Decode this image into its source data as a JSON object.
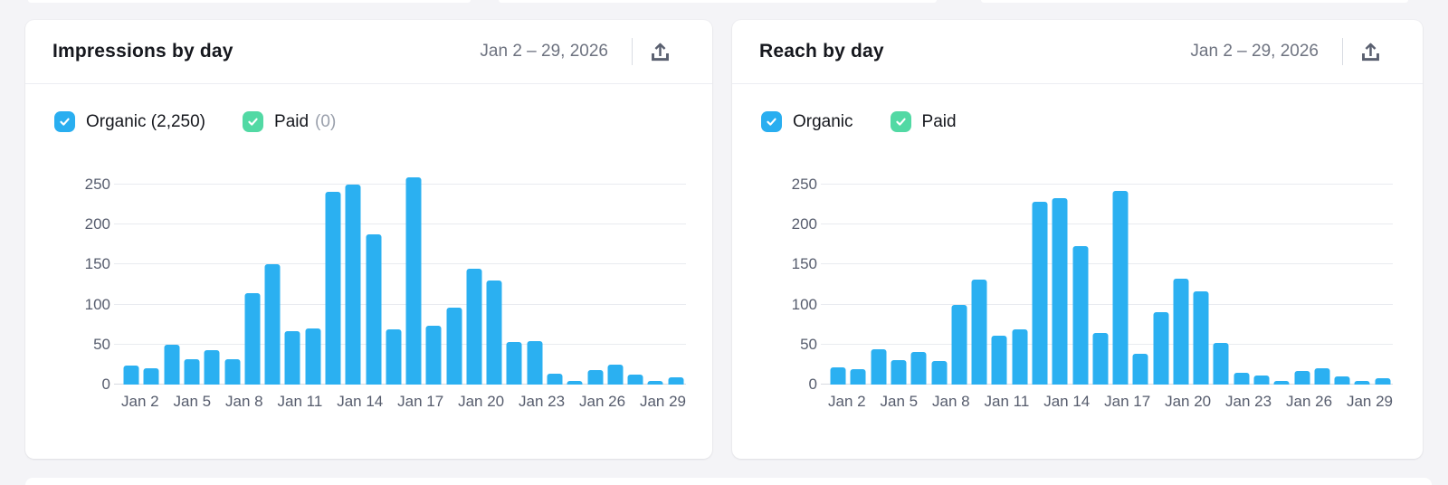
{
  "page": {
    "background_color": "#f4f4f7",
    "card_color": "#ffffff",
    "bar_color": "#2bb0f1",
    "checkbox_blue": "#29aef0",
    "checkbox_green": "#52d9a4",
    "axis_text_color": "#565c6d",
    "muted_text_color": "#9aa0ac"
  },
  "cards": [
    {
      "title": "Impressions by day",
      "date_range": "Jan 2 – 29, 2026",
      "export_icon": "export-upload-icon",
      "legend": [
        {
          "label": "Organic (2,250)",
          "checked": true,
          "color": "#29aef0"
        },
        {
          "label": "Paid",
          "suffix": "(0)",
          "checked": true,
          "color": "#52d9a4"
        }
      ]
    },
    {
      "title": "Reach by day",
      "date_range": "Jan 2 – 29, 2026",
      "export_icon": "export-upload-icon",
      "legend": [
        {
          "label": "Organic",
          "checked": true,
          "color": "#29aef0"
        },
        {
          "label": "Paid",
          "checked": true,
          "color": "#52d9a4"
        }
      ]
    }
  ],
  "chart_data": [
    {
      "type": "bar",
      "title": "Impressions by day",
      "categories": [
        "Jan 2",
        "Jan 3",
        "Jan 4",
        "Jan 5",
        "Jan 6",
        "Jan 7",
        "Jan 8",
        "Jan 9",
        "Jan 10",
        "Jan 11",
        "Jan 12",
        "Jan 13",
        "Jan 14",
        "Jan 15",
        "Jan 16",
        "Jan 17",
        "Jan 18",
        "Jan 19",
        "Jan 20",
        "Jan 21",
        "Jan 22",
        "Jan 23",
        "Jan 24",
        "Jan 25",
        "Jan 26",
        "Jan 27",
        "Jan 28",
        "Jan 29"
      ],
      "series": [
        {
          "name": "Organic",
          "total": 2250,
          "values": [
            24,
            20,
            50,
            32,
            43,
            32,
            114,
            150,
            67,
            70,
            241,
            250,
            188,
            69,
            259,
            74,
            96,
            145,
            130,
            53,
            54,
            14,
            5,
            18,
            25,
            13,
            5,
            9
          ]
        },
        {
          "name": "Paid",
          "total": 0,
          "values": [
            0,
            0,
            0,
            0,
            0,
            0,
            0,
            0,
            0,
            0,
            0,
            0,
            0,
            0,
            0,
            0,
            0,
            0,
            0,
            0,
            0,
            0,
            0,
            0,
            0,
            0,
            0,
            0
          ]
        }
      ],
      "y_ticks": [
        0,
        50,
        100,
        150,
        200,
        250
      ],
      "ylim": [
        0,
        250
      ],
      "x_tick_step": 3,
      "x_tick_labels": [
        "Jan 2",
        "Jan 5",
        "Jan 8",
        "Jan 11",
        "Jan 14",
        "Jan 17",
        "Jan 20",
        "Jan 23",
        "Jan 26",
        "Jan 29"
      ],
      "grid": true,
      "legend_position": "top-left"
    },
    {
      "type": "bar",
      "title": "Reach by day",
      "categories": [
        "Jan 2",
        "Jan 3",
        "Jan 4",
        "Jan 5",
        "Jan 6",
        "Jan 7",
        "Jan 8",
        "Jan 9",
        "Jan 10",
        "Jan 11",
        "Jan 12",
        "Jan 13",
        "Jan 14",
        "Jan 15",
        "Jan 16",
        "Jan 17",
        "Jan 18",
        "Jan 19",
        "Jan 20",
        "Jan 21",
        "Jan 22",
        "Jan 23",
        "Jan 24",
        "Jan 25",
        "Jan 26",
        "Jan 27",
        "Jan 28",
        "Jan 29"
      ],
      "series": [
        {
          "name": "Organic",
          "values": [
            21,
            19,
            44,
            30,
            41,
            29,
            99,
            131,
            61,
            69,
            228,
            233,
            173,
            64,
            242,
            38,
            90,
            132,
            117,
            52,
            15,
            11,
            5,
            17,
            20,
            10,
            5,
            8
          ]
        }
      ],
      "y_ticks": [
        0,
        50,
        100,
        150,
        200,
        250
      ],
      "ylim": [
        0,
        250
      ],
      "x_tick_step": 3,
      "x_tick_labels": [
        "Jan 2",
        "Jan 5",
        "Jan 8",
        "Jan 11",
        "Jan 14",
        "Jan 17",
        "Jan 20",
        "Jan 23",
        "Jan 26",
        "Jan 29"
      ],
      "grid": true,
      "legend_position": "top-left"
    }
  ]
}
